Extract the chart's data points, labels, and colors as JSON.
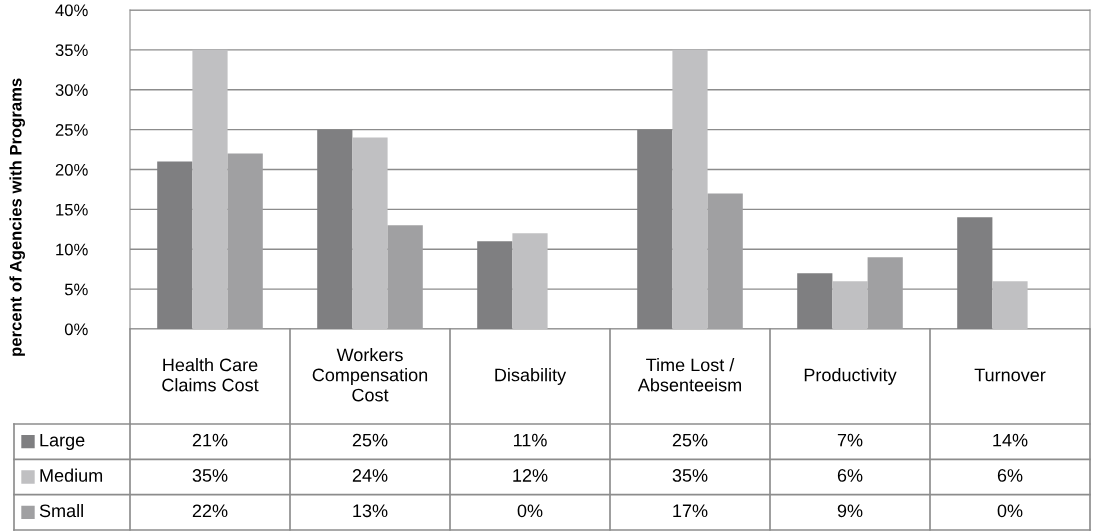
{
  "chart_data": {
    "type": "bar",
    "ylabel": "percent of Agencies with Programs",
    "categories": [
      "Health Care\nClaims Cost",
      "Workers\nCompensation\nCost",
      "Disability",
      "Time Lost /\nAbsenteeism",
      "Productivity",
      "Turnover"
    ],
    "series": [
      {
        "name": "Large",
        "color": "#7f7f81",
        "values": [
          21,
          25,
          11,
          25,
          7,
          14
        ],
        "value_labels": [
          "21%",
          "25%",
          "11%",
          "25%",
          "7%",
          "14%"
        ]
      },
      {
        "name": "Medium",
        "color": "#c0c0c2",
        "values": [
          35,
          24,
          12,
          35,
          6,
          6
        ],
        "value_labels": [
          "35%",
          "24%",
          "12%",
          "35%",
          "6%",
          "6%"
        ]
      },
      {
        "name": "Small",
        "color": "#a0a0a2",
        "values": [
          22,
          13,
          0,
          17,
          9,
          0
        ],
        "value_labels": [
          "22%",
          "13%",
          "0%",
          "17%",
          "9%",
          "0%"
        ]
      }
    ],
    "ylim": [
      0,
      40
    ],
    "yticks": [
      {
        "value": 0,
        "label": "0%"
      },
      {
        "value": 5,
        "label": "5%"
      },
      {
        "value": 10,
        "label": "10%"
      },
      {
        "value": 15,
        "label": "15%"
      },
      {
        "value": 20,
        "label": "20%"
      },
      {
        "value": 25,
        "label": "25%"
      },
      {
        "value": 30,
        "label": "30%"
      },
      {
        "value": 35,
        "label": "35%"
      },
      {
        "value": 40,
        "label": "40%"
      }
    ],
    "grid": "y",
    "legend": "bottom left"
  }
}
